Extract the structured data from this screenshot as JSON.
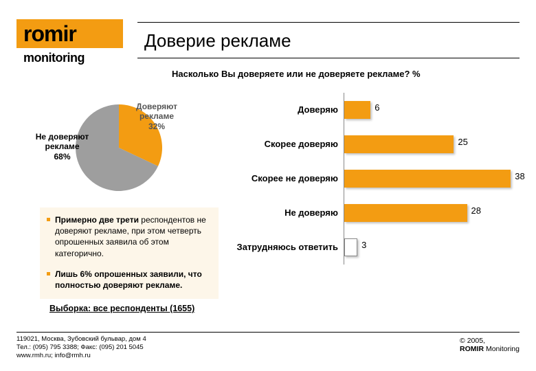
{
  "logo": {
    "top": "romir",
    "bottom": "monitoring"
  },
  "title": "Доверие рекламе",
  "subtitle": "Насколько Вы доверяете или не доверяете рекламе? %",
  "pie": {
    "type": "pie",
    "slices": [
      {
        "label": "Доверяют рекламе",
        "pct": "32%",
        "value": 32,
        "color": "#f39c12"
      },
      {
        "label": "Не доверяют рекламе",
        "pct": "68%",
        "value": 68,
        "color": "#9e9e9e"
      }
    ],
    "start_angle_deg": -90,
    "background": "#ffffff"
  },
  "bars": {
    "type": "bar-horizontal",
    "max": 40,
    "bar_color": "#f39c12",
    "bar_color_last": "#ffffff",
    "border_color": "#888888",
    "rows": [
      {
        "label": "Доверяю",
        "value": 6
      },
      {
        "label": "Скорее доверяю",
        "value": 25
      },
      {
        "label": "Скорее не доверяю",
        "value": 38
      },
      {
        "label": "Не доверяю",
        "value": 28
      },
      {
        "label": "Затрудняюсь ответить",
        "value": 3,
        "white": true
      }
    ]
  },
  "bullets": [
    {
      "lead": "Примерно две трети",
      "tail": " респондентов не доверяют рекламе, при этом четверть опрошенных заявила об этом категорично."
    },
    {
      "lead": "Лишь 6% опрошенных заявили, что полностью доверяют рекламе.",
      "tail": ""
    }
  ],
  "sample": "Выборка: все респонденты (1655)",
  "footer": {
    "address": "119021, Москва, Зубовский бульвар, дом 4",
    "phone": "Тел.: (095) 795 3388; Факс: (095) 201 5045",
    "web": "www.rmh.ru; info@rmh.ru",
    "copyright_year": "© 2005,",
    "copyright_name1": "ROMIR",
    "copyright_name2": " Monitoring"
  },
  "colors": {
    "accent": "#f39c12",
    "gray": "#9e9e9e",
    "text": "#000000",
    "bullet_bg": "#fdf6e9"
  }
}
